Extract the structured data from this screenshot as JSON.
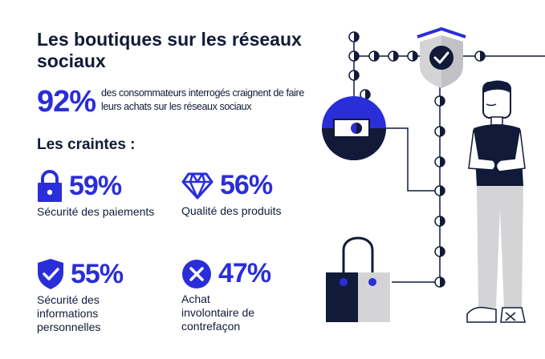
{
  "header": {
    "title": "Les boutiques sur les réseaux sociaux",
    "headline_percent": "92%",
    "headline_text": "des consommateurs interrogés craignent de faire leurs achats sur les réseaux sociaux"
  },
  "fears": {
    "subtitle": "Les craintes :",
    "items": [
      {
        "icon": "lock-icon",
        "percent": "59%",
        "label": "Sécurité des paiements"
      },
      {
        "icon": "diamond-icon",
        "percent": "56%",
        "label": "Qualité des produits"
      },
      {
        "icon": "shield-check-icon",
        "percent": "55%",
        "label": "Sécurité des\ninformations\npersonnelles"
      },
      {
        "icon": "x-circle-icon",
        "percent": "47%",
        "label": "Achat\ninvolontaire de\ncontrefaçon"
      }
    ]
  },
  "colors": {
    "accent": "#2a2ed8",
    "dark": "#111a38",
    "gray": "#d4d4d6"
  }
}
